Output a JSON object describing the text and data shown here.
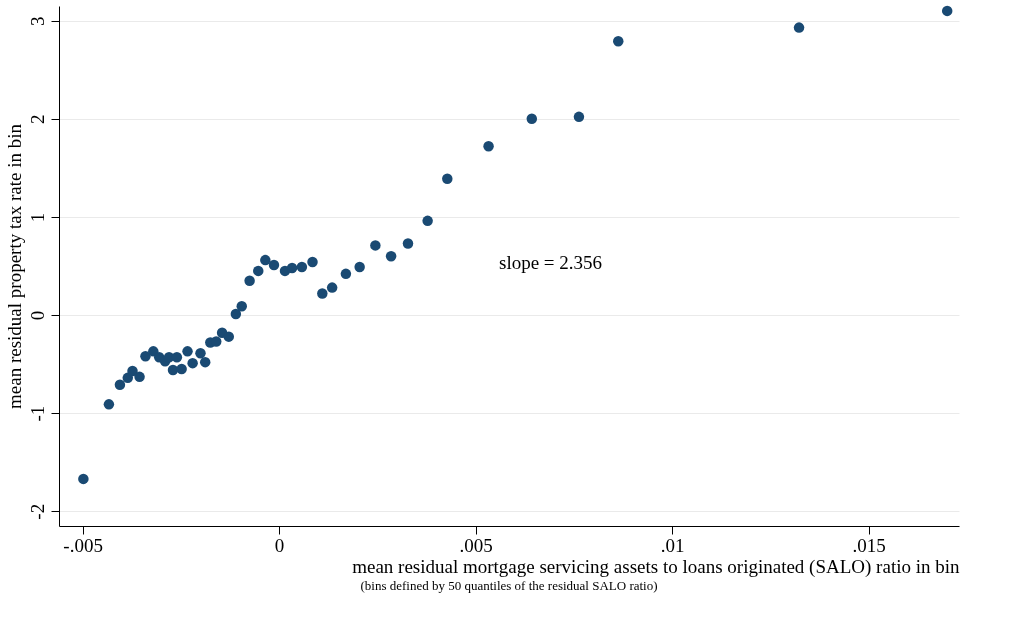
{
  "chart_data": {
    "type": "scatter",
    "xlabel": "mean residual mortgage servicing assets to loans originated (SALO) ratio in bin",
    "ylabel": "mean residual property tax rate in bin",
    "annotations": [
      "slope = 2.356",
      "(bins defined by 50 quantiles of the residual SALO ratio)"
    ],
    "x": [
      -0.00498,
      -0.00433,
      -0.00405,
      -0.00385,
      -0.00373,
      -0.00355,
      -0.0034,
      -0.0032,
      -0.00305,
      -0.0029,
      -0.0028,
      -0.0027,
      -0.0026,
      -0.00248,
      -0.00233,
      -0.0022,
      -0.002,
      -0.00188,
      -0.00175,
      -0.0016,
      -0.00145,
      -0.00128,
      -0.0011,
      -0.00095,
      -0.00075,
      -0.00053,
      -0.00035,
      -0.00013,
      0.00015,
      0.00033,
      0.00058,
      0.00085,
      0.0011,
      0.00135,
      0.0017,
      0.00205,
      0.00245,
      0.00285,
      0.00328,
      0.00378,
      0.00428,
      0.00533,
      0.00643,
      0.00763,
      0.00863,
      0.01323,
      0.017
    ],
    "series": [
      {
        "color": "#1a4a73",
        "values": [
          -1.67,
          -0.91,
          -0.71,
          -0.64,
          -0.57,
          -0.63,
          -0.42,
          -0.37,
          -0.43,
          -0.47,
          -0.43,
          -0.56,
          -0.43,
          -0.55,
          -0.37,
          -0.49,
          -0.39,
          -0.48,
          -0.28,
          -0.27,
          -0.18,
          -0.22,
          0.01,
          0.09,
          0.35,
          0.45,
          0.56,
          0.51,
          0.45,
          0.48,
          0.49,
          0.54,
          0.22,
          0.28,
          0.42,
          0.49,
          0.71,
          0.6,
          0.73,
          0.96,
          1.39,
          1.72,
          2.0,
          2.02,
          2.79,
          2.93,
          3.1
        ]
      }
    ],
    "xlim": [
      -0.0056,
      0.0173
    ],
    "xticks": [
      {
        "value": -0.005,
        "label": "-.005"
      },
      0,
      {
        "value": 0.005,
        "label": ".005"
      },
      {
        "value": 0.01,
        "label": ".01"
      },
      {
        "value": 0.015,
        "label": ".015"
      }
    ],
    "ylim": [
      -2.15,
      3.15
    ],
    "yticks": [
      -2,
      -1,
      0,
      1,
      2,
      3
    ],
    "grid": "y",
    "marker": "circle"
  }
}
